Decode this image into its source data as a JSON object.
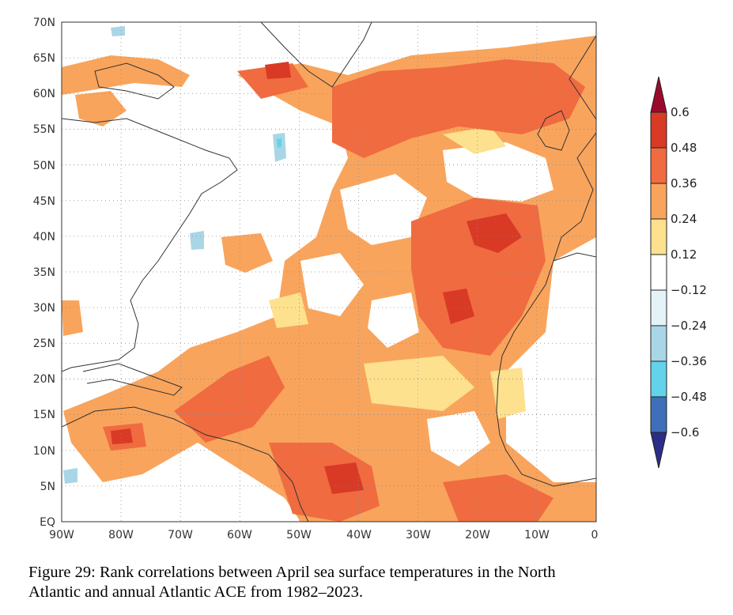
{
  "map": {
    "lat_labels": [
      "70N",
      "65N",
      "60N",
      "55N",
      "50N",
      "45N",
      "40N",
      "35N",
      "30N",
      "25N",
      "20N",
      "15N",
      "10N",
      "5N",
      "EQ"
    ],
    "lon_labels": [
      "90W",
      "80W",
      "70W",
      "60W",
      "50W",
      "40W",
      "30W",
      "20W",
      "10W",
      "0"
    ]
  },
  "colorbar": {
    "labels": [
      "0.6",
      "0.48",
      "0.36",
      "0.24",
      "0.12",
      "−0.12",
      "−0.24",
      "−0.36",
      "−0.48",
      "−0.6"
    ],
    "colors": {
      "over": "#9b0a2c",
      "0.48_0.6": "#d83a26",
      "0.36_0.48": "#f06b40",
      "0.24_0.36": "#f9a45c",
      "0.12_0.24": "#fde18e",
      "neutral": "#ffffff",
      "-0.24_-0.12": "#e3f3f8",
      "-0.36_-0.24": "#a9d6e6",
      "-0.48_-0.36": "#62d3ea",
      "-0.6_-0.48": "#3f6fb8",
      "under": "#2b2e87"
    }
  },
  "caption": {
    "line1": "Figure 29: Rank correlations between April sea surface temperatures in the North",
    "line2": "Atlantic and annual Atlantic ACE from 1982–2023."
  }
}
